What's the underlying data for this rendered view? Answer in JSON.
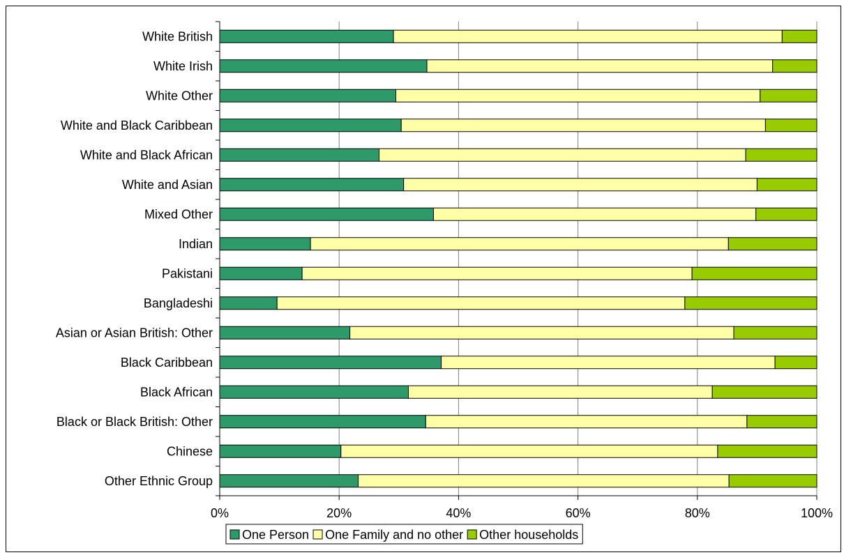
{
  "chart_data": {
    "type": "bar",
    "orientation": "horizontal",
    "stacked": "percent",
    "categories": [
      "White British",
      "White Irish",
      "White Other",
      "White and Black Caribbean",
      "White and Black African",
      "White and Asian",
      "Mixed Other",
      "Indian",
      "Pakistani",
      "Bangladeshi",
      "Asian or Asian British: Other",
      "Black Caribbean",
      "Black African",
      "Black or Black British: Other",
      "Chinese",
      "Other Ethnic Group"
    ],
    "series": [
      {
        "name": "One Person",
        "color": "#2e9a6a",
        "values": [
          29.1,
          34.7,
          29.5,
          30.4,
          26.7,
          30.8,
          35.8,
          15.2,
          13.8,
          9.6,
          21.8,
          37.1,
          31.6,
          34.5,
          20.3,
          23.2
        ]
      },
      {
        "name": "One Family and no other",
        "color": "#ffffa8",
        "values": [
          65.1,
          57.9,
          61.0,
          61.0,
          61.4,
          59.2,
          54.0,
          70.0,
          65.3,
          68.3,
          64.3,
          55.9,
          50.9,
          53.8,
          63.1,
          62.1
        ]
      },
      {
        "name": "Other households",
        "color": "#99cc00",
        "values": [
          5.8,
          7.4,
          9.5,
          8.6,
          11.9,
          10.0,
          10.2,
          14.8,
          20.9,
          22.1,
          13.9,
          7.0,
          17.5,
          11.7,
          16.6,
          14.7
        ]
      }
    ],
    "xaxis": {
      "ticks": [
        "0%",
        "20%",
        "40%",
        "60%",
        "80%",
        "100%"
      ],
      "range": [
        0,
        100
      ]
    },
    "grid": true,
    "legend": "bottom"
  }
}
